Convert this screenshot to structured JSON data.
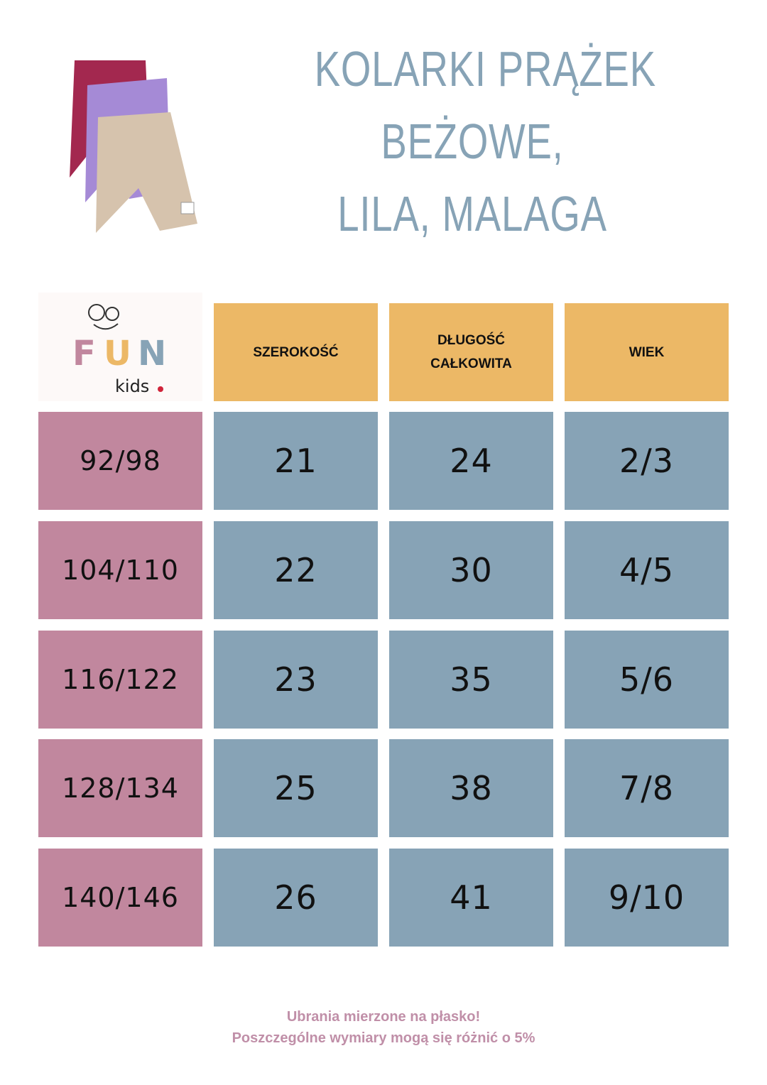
{
  "title": {
    "lines": [
      "KOLARKI PRĄŻEK",
      "BEŻOWE,",
      "LILA, MALAGA"
    ]
  },
  "logo": {
    "text": "FUN kids."
  },
  "table": {
    "headers": [
      "SZEROKOŚĆ",
      "DŁUGOŚĆ CAŁKOWITA",
      "WIEK"
    ],
    "rows": [
      {
        "size": "92/98",
        "szerokosc": "21",
        "dlugosc": "24",
        "wiek": "2/3"
      },
      {
        "size": "104/110",
        "szerokosc": "22",
        "dlugosc": "30",
        "wiek": "4/5"
      },
      {
        "size": "116/122",
        "szerokosc": "23",
        "dlugosc": "35",
        "wiek": "5/6"
      },
      {
        "size": "128/134",
        "szerokosc": "25",
        "dlugosc": "38",
        "wiek": "7/8"
      },
      {
        "size": "140/146",
        "szerokosc": "26",
        "dlugosc": "41",
        "wiek": "9/10"
      }
    ]
  },
  "footer": {
    "line1": "Ubrania mierzone na płasko!",
    "line2": "Poszczególne wymiary mogą się różnić o 5%"
  },
  "colors": {
    "header": "#ecb866",
    "size_cell": "#c1879e",
    "value_cell": "#87a3b6",
    "title": "#87a3b6",
    "footer": "#c08fa8"
  }
}
